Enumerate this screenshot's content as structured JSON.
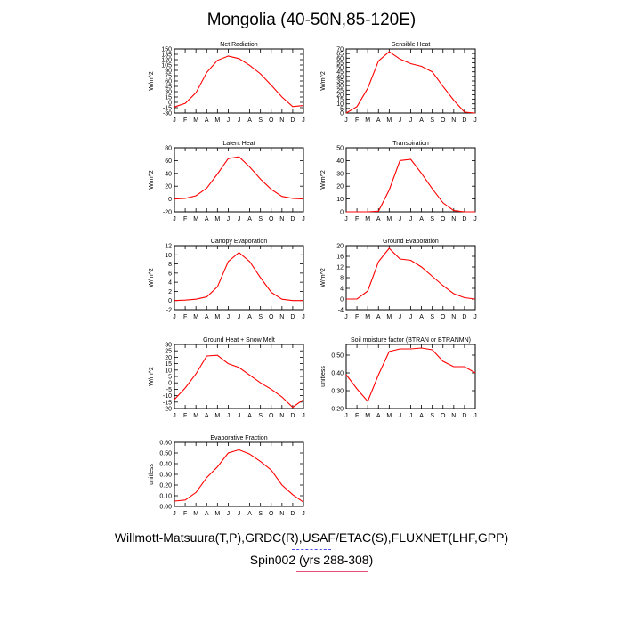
{
  "title": "Mongolia (40-50N,85-120E)",
  "footer": {
    "line1": "Willmott-Matsuura(T,P),GRDC(R),USAF/ETAC(S),FLUXNET(LHF,GPP)",
    "line2": "Spin002 (yrs 288-308)"
  },
  "colors": {
    "series": "#ff0000",
    "axis": "#000000",
    "legend_line1": "#4a4ae8",
    "legend_line2": "#e8507a"
  },
  "chart_data": [
    {
      "type": "line",
      "title": "Net Radiation",
      "ylabel": "W/m^2",
      "categories": [
        "J",
        "F",
        "M",
        "A",
        "M",
        "J",
        "J",
        "A",
        "S",
        "O",
        "N",
        "D",
        "J"
      ],
      "ylim": [
        -30,
        150
      ],
      "yticks": [
        -30,
        -15,
        0,
        15,
        30,
        45,
        60,
        75,
        90,
        105,
        120,
        135,
        150
      ],
      "series": [
        {
          "values": [
            -13,
            -3,
            27,
            84,
            118,
            130,
            123,
            104,
            80,
            48,
            15,
            -12,
            -9
          ]
        }
      ]
    },
    {
      "type": "line",
      "title": "Sensible Heat",
      "ylabel": "W/m^2",
      "categories": [
        "J",
        "F",
        "M",
        "A",
        "M",
        "J",
        "J",
        "A",
        "S",
        "O",
        "N",
        "D",
        "J"
      ],
      "ylim": [
        0,
        70
      ],
      "yticks": [
        0,
        5,
        10,
        15,
        20,
        25,
        30,
        35,
        40,
        45,
        50,
        55,
        60,
        65,
        70
      ],
      "series": [
        {
          "values": [
            0,
            7,
            27,
            57,
            67,
            59,
            54,
            51,
            45,
            29,
            14,
            1,
            0
          ]
        }
      ]
    },
    {
      "type": "line",
      "title": "Latent Heat",
      "ylabel": "W/m^2",
      "categories": [
        "J",
        "F",
        "M",
        "A",
        "M",
        "J",
        "J",
        "A",
        "S",
        "O",
        "N",
        "D",
        "J"
      ],
      "ylim": [
        -20,
        80
      ],
      "yticks": [
        -20,
        0,
        20,
        40,
        60,
        80
      ],
      "series": [
        {
          "values": [
            0,
            1,
            5,
            17,
            39,
            63,
            66,
            50,
            31,
            15,
            4,
            1,
            0
          ]
        }
      ]
    },
    {
      "type": "line",
      "title": "Transpiration",
      "ylabel": "W/m^2",
      "categories": [
        "J",
        "F",
        "M",
        "A",
        "M",
        "J",
        "J",
        "A",
        "S",
        "O",
        "N",
        "D",
        "J"
      ],
      "ylim": [
        0,
        50
      ],
      "yticks": [
        0,
        10,
        20,
        30,
        40,
        50
      ],
      "series": [
        {
          "values": [
            0,
            0,
            0,
            0.5,
            17,
            40,
            41,
            30,
            18,
            7,
            1,
            0,
            0
          ]
        }
      ]
    },
    {
      "type": "line",
      "title": "Canopy Evaporation",
      "ylabel": "W/m^2",
      "categories": [
        "J",
        "F",
        "M",
        "A",
        "M",
        "J",
        "J",
        "A",
        "S",
        "O",
        "N",
        "D",
        "J"
      ],
      "ylim": [
        -2,
        12
      ],
      "yticks": [
        -2,
        0,
        2,
        4,
        6,
        8,
        10,
        12
      ],
      "series": [
        {
          "values": [
            0,
            0.1,
            0.3,
            0.8,
            3,
            8.5,
            10.5,
            8.5,
            5,
            1.8,
            0.3,
            0,
            0
          ]
        }
      ]
    },
    {
      "type": "line",
      "title": "Ground Evaporation",
      "ylabel": "W/m^2",
      "categories": [
        "J",
        "F",
        "M",
        "A",
        "M",
        "J",
        "J",
        "A",
        "S",
        "O",
        "N",
        "D",
        "J"
      ],
      "ylim": [
        -4,
        20
      ],
      "yticks": [
        -4,
        0,
        4,
        8,
        12,
        16,
        20
      ],
      "series": [
        {
          "values": [
            0,
            0,
            3,
            14,
            19,
            15,
            14.5,
            12,
            8.5,
            5,
            2,
            0.5,
            0
          ]
        }
      ]
    },
    {
      "type": "line",
      "title": "Ground Heat + Snow Melt",
      "ylabel": "W/m^2",
      "categories": [
        "J",
        "F",
        "M",
        "A",
        "M",
        "J",
        "J",
        "A",
        "S",
        "O",
        "N",
        "D",
        "J"
      ],
      "ylim": [
        -20,
        30
      ],
      "yticks": [
        -20,
        -15,
        -10,
        -5,
        0,
        5,
        10,
        15,
        20,
        25,
        30
      ],
      "series": [
        {
          "values": [
            -13,
            -4,
            7,
            21,
            21.5,
            15,
            12,
            6,
            0,
            -5,
            -11,
            -19,
            -13
          ]
        }
      ]
    },
    {
      "type": "line",
      "title": "Soil moisture factor (BTRAN or BTRANMN)",
      "ylabel": "unitless",
      "categories": [
        "J",
        "F",
        "M",
        "A",
        "M",
        "J",
        "J",
        "A",
        "S",
        "O",
        "N",
        "D",
        "J"
      ],
      "ylim": [
        0.2,
        0.56
      ],
      "yticks": [
        0.2,
        0.3,
        0.4,
        0.5
      ],
      "ytick_format": "0.00",
      "series": [
        {
          "values": [
            0.39,
            0.31,
            0.24,
            0.39,
            0.52,
            0.535,
            0.535,
            0.54,
            0.53,
            0.465,
            0.435,
            0.435,
            0.4
          ]
        }
      ]
    },
    {
      "type": "line",
      "title": "Evaporative Fraction",
      "ylabel": "unitless",
      "categories": [
        "J",
        "F",
        "M",
        "A",
        "M",
        "J",
        "J",
        "A",
        "S",
        "O",
        "N",
        "D",
        "J"
      ],
      "ylim": [
        0,
        0.6
      ],
      "yticks": [
        0,
        0.1,
        0.2,
        0.3,
        0.4,
        0.5,
        0.6
      ],
      "ytick_format": "0.00",
      "series": [
        {
          "values": [
            0.05,
            0.06,
            0.13,
            0.27,
            0.37,
            0.5,
            0.53,
            0.49,
            0.42,
            0.34,
            0.2,
            0.11,
            0.04
          ]
        }
      ]
    }
  ]
}
